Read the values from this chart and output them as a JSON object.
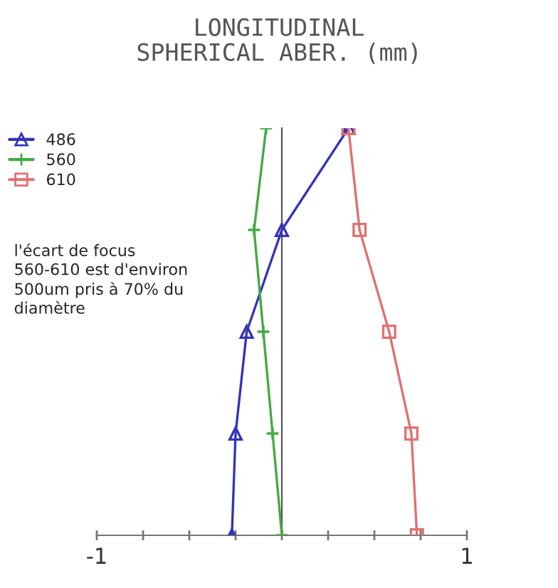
{
  "chart_data": {
    "type": "line",
    "title": "LONGITUDINAL\nSPHERICAL ABER. (mm)",
    "orientation": "horizontal",
    "categories": [
      null,
      null,
      null,
      null,
      null
    ],
    "series": [
      {
        "name": "486",
        "color": "#3333bb",
        "marker": "triangle",
        "values": [
          0.36,
          0.0,
          -0.19,
          -0.25,
          -0.27
        ]
      },
      {
        "name": "560",
        "color": "#44aa44",
        "marker": "cross",
        "values": [
          -0.085,
          -0.15,
          -0.1,
          -0.05,
          0.0
        ]
      },
      {
        "name": "610",
        "color": "#e07070",
        "marker": "square",
        "values": [
          0.36,
          0.42,
          0.58,
          0.7,
          0.73
        ]
      }
    ],
    "xlim": [
      -1,
      1
    ],
    "xticks": [
      -1,
      {
        "value": -0.75,
        "label": null
      },
      {
        "value": -0.5,
        "label": null
      },
      {
        "value": -0.25,
        "label": null
      },
      {
        "value": 0,
        "label": null
      },
      {
        "value": 0.25,
        "label": null
      },
      {
        "value": 0.5,
        "label": null
      },
      {
        "value": 0.75,
        "label": null
      },
      1
    ],
    "tick_labels": "x",
    "legend": "top left",
    "line_style": "solid",
    "annotations": [
      "l'écart de focus\n560-610 est d'environ\n500um pris à 70% du\ndiamètre"
    ]
  }
}
